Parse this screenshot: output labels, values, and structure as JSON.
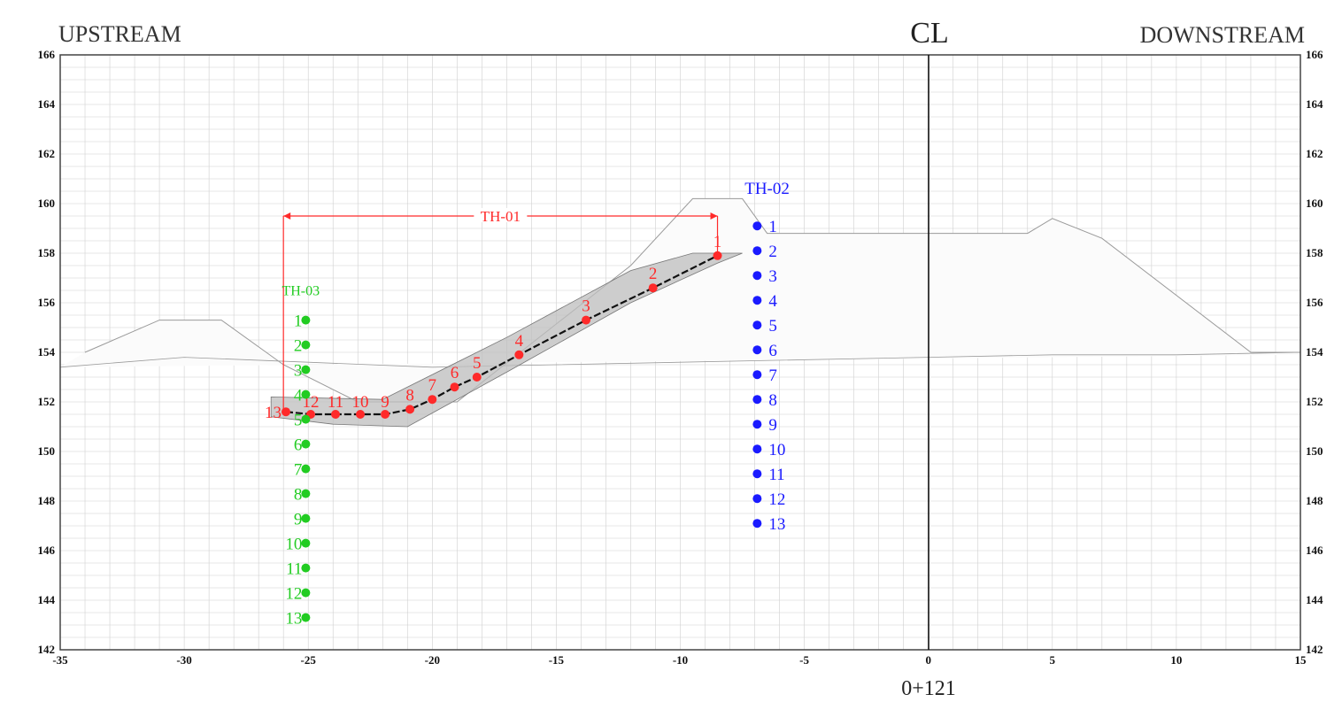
{
  "header": {
    "left": "UPSTREAM",
    "right": "DOWNSTREAM",
    "centerline": "CL",
    "station": "0+121"
  },
  "colors": {
    "th01": "#ff2a2a",
    "th02": "#1a1aff",
    "th03": "#22cc22",
    "grid": "#cfcfcf",
    "frame": "#444444"
  },
  "chart_data": {
    "type": "scatter",
    "xlim": [
      -35,
      15
    ],
    "ylim": [
      142,
      166
    ],
    "x_ticks": [
      -35,
      -30,
      -25,
      -20,
      -15,
      -10,
      -5,
      0,
      5,
      10,
      15
    ],
    "y_ticks": [
      142,
      144,
      146,
      148,
      150,
      152,
      154,
      156,
      158,
      160,
      162,
      164,
      166
    ],
    "grid": true,
    "series": [
      {
        "name": "TH-01",
        "color": "#ff2a2a",
        "points": [
          {
            "label": "1",
            "x": -8.5,
            "y": 157.9
          },
          {
            "label": "2",
            "x": -11.1,
            "y": 156.6
          },
          {
            "label": "3",
            "x": -13.8,
            "y": 155.3
          },
          {
            "label": "4",
            "x": -16.5,
            "y": 153.9
          },
          {
            "label": "5",
            "x": -18.2,
            "y": 153.0
          },
          {
            "label": "6",
            "x": -19.1,
            "y": 152.6
          },
          {
            "label": "7",
            "x": -20.0,
            "y": 152.1
          },
          {
            "label": "8",
            "x": -20.9,
            "y": 151.7
          },
          {
            "label": "9",
            "x": -21.9,
            "y": 151.5
          },
          {
            "label": "10",
            "x": -22.9,
            "y": 151.5
          },
          {
            "label": "11",
            "x": -23.9,
            "y": 151.5
          },
          {
            "label": "12",
            "x": -24.9,
            "y": 151.5
          },
          {
            "label": "13",
            "x": -25.9,
            "y": 151.6
          }
        ]
      },
      {
        "name": "TH-02",
        "color": "#1a1aff",
        "points": [
          {
            "label": "1",
            "x": -6.9,
            "y": 159.1
          },
          {
            "label": "2",
            "x": -6.9,
            "y": 158.1
          },
          {
            "label": "3",
            "x": -6.9,
            "y": 157.1
          },
          {
            "label": "4",
            "x": -6.9,
            "y": 156.1
          },
          {
            "label": "5",
            "x": -6.9,
            "y": 155.1
          },
          {
            "label": "6",
            "x": -6.9,
            "y": 154.1
          },
          {
            "label": "7",
            "x": -6.9,
            "y": 153.1
          },
          {
            "label": "8",
            "x": -6.9,
            "y": 152.1
          },
          {
            "label": "9",
            "x": -6.9,
            "y": 151.1
          },
          {
            "label": "10",
            "x": -6.9,
            "y": 150.1
          },
          {
            "label": "11",
            "x": -6.9,
            "y": 149.1
          },
          {
            "label": "12",
            "x": -6.9,
            "y": 148.1
          },
          {
            "label": "13",
            "x": -6.9,
            "y": 147.1
          }
        ]
      },
      {
        "name": "TH-03",
        "color": "#22cc22",
        "points": [
          {
            "label": "1",
            "x": -25.1,
            "y": 155.3
          },
          {
            "label": "2",
            "x": -25.1,
            "y": 154.3
          },
          {
            "label": "3",
            "x": -25.1,
            "y": 153.3
          },
          {
            "label": "4",
            "x": -25.1,
            "y": 152.3
          },
          {
            "label": "5",
            "x": -25.1,
            "y": 151.3
          },
          {
            "label": "6",
            "x": -25.1,
            "y": 150.3
          },
          {
            "label": "7",
            "x": -25.1,
            "y": 149.3
          },
          {
            "label": "8",
            "x": -25.1,
            "y": 148.3
          },
          {
            "label": "9",
            "x": -25.1,
            "y": 147.3
          },
          {
            "label": "10",
            "x": -25.1,
            "y": 146.3
          },
          {
            "label": "11",
            "x": -25.1,
            "y": 145.3
          },
          {
            "label": "12",
            "x": -25.1,
            "y": 144.3
          },
          {
            "label": "13",
            "x": -25.1,
            "y": 143.3
          }
        ]
      }
    ],
    "outline": [
      [
        -34,
        154.0
      ],
      [
        -31,
        155.3
      ],
      [
        -28.5,
        155.3
      ],
      [
        -26,
        153.5
      ],
      [
        -23,
        152.0
      ],
      [
        -19,
        152.0
      ],
      [
        -12,
        157.5
      ],
      [
        -9.5,
        160.2
      ],
      [
        -7.5,
        160.2
      ],
      [
        -6.5,
        158.8
      ],
      [
        0,
        158.8
      ],
      [
        4,
        158.8
      ],
      [
        5,
        159.4
      ],
      [
        7,
        158.6
      ],
      [
        13,
        154.0
      ],
      [
        15,
        154.0
      ]
    ],
    "ground": [
      [
        -35,
        153.4
      ],
      [
        -30,
        153.8
      ],
      [
        -25,
        153.6
      ],
      [
        -20,
        153.4
      ],
      [
        -10,
        153.6
      ],
      [
        0,
        153.8
      ],
      [
        5,
        153.9
      ],
      [
        10,
        153.9
      ],
      [
        15,
        154.0
      ]
    ],
    "filter_band": [
      [
        -26.5,
        152.2
      ],
      [
        -22,
        152.1
      ],
      [
        -17,
        154.6
      ],
      [
        -12,
        157.3
      ],
      [
        -9.5,
        158.0
      ],
      [
        -7.5,
        158.0
      ],
      [
        -8.5,
        157.6
      ],
      [
        -12,
        156.0
      ],
      [
        -17,
        153.2
      ],
      [
        -21,
        151.0
      ],
      [
        -24,
        151.1
      ],
      [
        -26.5,
        151.4
      ]
    ]
  }
}
